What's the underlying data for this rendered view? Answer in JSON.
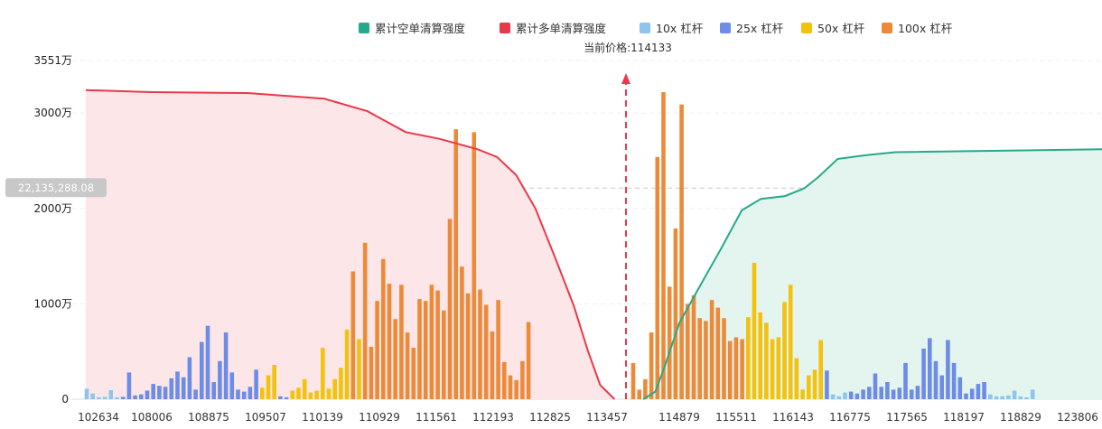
{
  "chart_data": {
    "type": "bar",
    "title": "",
    "price_label": "当前价格:114133",
    "current_price": 114133,
    "crosshair_label": "22,135,288.08",
    "crosshair_value": 22135288.08,
    "y_axis": {
      "unit": "万",
      "max": 35510000,
      "ticks": [
        {
          "value": 0,
          "label": "0"
        },
        {
          "value": 10000000,
          "label": "1000万"
        },
        {
          "value": 20000000,
          "label": "2000万"
        },
        {
          "value": 30000000,
          "label": "3000万"
        },
        {
          "value": 35510000,
          "label": "3551万"
        }
      ]
    },
    "x_axis": {
      "min": 102634,
      "max": 123806,
      "tick_labels": [
        "102634",
        "108006",
        "108875",
        "109507",
        "110139",
        "110929",
        "111561",
        "112193",
        "112825",
        "113457",
        "114879",
        "115511",
        "116143",
        "116775",
        "117565",
        "118197",
        "118829",
        "123806"
      ]
    },
    "legend": [
      {
        "key": "cum_short",
        "label": "累计空单清算强度",
        "color": "#26a98b"
      },
      {
        "key": "cum_long",
        "label": "累计多单清算强度",
        "color": "#e8394a"
      },
      {
        "key": "lev10",
        "label": "10x 杠杆",
        "color": "#8ec5ec"
      },
      {
        "key": "lev25",
        "label": "25x 杠杆",
        "color": "#6c8ce8"
      },
      {
        "key": "lev50",
        "label": "50x 杠杆",
        "color": "#f2c20c"
      },
      {
        "key": "lev100",
        "label": "100x 杠杆",
        "color": "#ec8a3a"
      }
    ],
    "colors": {
      "long_fill": "#fde6e8",
      "short_fill": "#e4f5ef",
      "price_line": "#e8394a",
      "grid": "#eeeeee",
      "crosshair_badge": "#c8c8c8"
    },
    "bars": [
      {
        "l": "10x",
        "v": 1100000
      },
      {
        "l": "10x",
        "v": 600000
      },
      {
        "l": "10x",
        "v": 200000
      },
      {
        "l": "10x",
        "v": 250000
      },
      {
        "l": "10x",
        "v": 950000
      },
      {
        "l": "10x",
        "v": 200000
      },
      {
        "l": "25x",
        "v": 250000
      },
      {
        "l": "25x",
        "v": 2800000
      },
      {
        "l": "25x",
        "v": 400000
      },
      {
        "l": "25x",
        "v": 500000
      },
      {
        "l": "25x",
        "v": 900000
      },
      {
        "l": "25x",
        "v": 1600000
      },
      {
        "l": "25x",
        "v": 1400000
      },
      {
        "l": "25x",
        "v": 1300000
      },
      {
        "l": "25x",
        "v": 2200000
      },
      {
        "l": "25x",
        "v": 2900000
      },
      {
        "l": "25x",
        "v": 2300000
      },
      {
        "l": "25x",
        "v": 4400000
      },
      {
        "l": "25x",
        "v": 1000000
      },
      {
        "l": "25x",
        "v": 6000000
      },
      {
        "l": "25x",
        "v": 7700000
      },
      {
        "l": "25x",
        "v": 1800000
      },
      {
        "l": "25x",
        "v": 4000000
      },
      {
        "l": "25x",
        "v": 7000000
      },
      {
        "l": "25x",
        "v": 2800000
      },
      {
        "l": "25x",
        "v": 1000000
      },
      {
        "l": "25x",
        "v": 800000
      },
      {
        "l": "25x",
        "v": 1300000
      },
      {
        "l": "25x",
        "v": 3100000
      },
      {
        "l": "50x",
        "v": 1200000
      },
      {
        "l": "50x",
        "v": 2500000
      },
      {
        "l": "50x",
        "v": 3600000
      },
      {
        "l": "25x",
        "v": 300000
      },
      {
        "l": "25x",
        "v": 200000
      },
      {
        "l": "50x",
        "v": 900000
      },
      {
        "l": "50x",
        "v": 1200000
      },
      {
        "l": "50x",
        "v": 2100000
      },
      {
        "l": "50x",
        "v": 700000
      },
      {
        "l": "50x",
        "v": 900000
      },
      {
        "l": "50x",
        "v": 5400000
      },
      {
        "l": "50x",
        "v": 1100000
      },
      {
        "l": "50x",
        "v": 2100000
      },
      {
        "l": "50x",
        "v": 3300000
      },
      {
        "l": "50x",
        "v": 7300000
      },
      {
        "l": "100x",
        "v": 13400000
      },
      {
        "l": "50x",
        "v": 6300000
      },
      {
        "l": "100x",
        "v": 16400000
      },
      {
        "l": "100x",
        "v": 5500000
      },
      {
        "l": "100x",
        "v": 10300000
      },
      {
        "l": "100x",
        "v": 14700000
      },
      {
        "l": "100x",
        "v": 12100000
      },
      {
        "l": "100x",
        "v": 8400000
      },
      {
        "l": "100x",
        "v": 12000000
      },
      {
        "l": "100x",
        "v": 7000000
      },
      {
        "l": "100x",
        "v": 5400000
      },
      {
        "l": "100x",
        "v": 10500000
      },
      {
        "l": "100x",
        "v": 10300000
      },
      {
        "l": "100x",
        "v": 12000000
      },
      {
        "l": "100x",
        "v": 11400000
      },
      {
        "l": "100x",
        "v": 9300000
      },
      {
        "l": "100x",
        "v": 18900000
      },
      {
        "l": "100x",
        "v": 28300000
      },
      {
        "l": "100x",
        "v": 13900000
      },
      {
        "l": "100x",
        "v": 11100000
      },
      {
        "l": "100x",
        "v": 28000000
      },
      {
        "l": "100x",
        "v": 11500000
      },
      {
        "l": "100x",
        "v": 9900000
      },
      {
        "l": "100x",
        "v": 7100000
      },
      {
        "l": "100x",
        "v": 10400000
      },
      {
        "l": "100x",
        "v": 3900000
      },
      {
        "l": "100x",
        "v": 2500000
      },
      {
        "l": "100x",
        "v": 2000000
      },
      {
        "l": "100x",
        "v": 4000000
      },
      {
        "l": "100x",
        "v": 8100000
      },
      {
        "l": "100x",
        "v": 3800000
      },
      {
        "l": "100x",
        "v": 1000000
      },
      {
        "l": "100x",
        "v": 2100000
      },
      {
        "l": "100x",
        "v": 7000000
      },
      {
        "l": "100x",
        "v": 25400000
      },
      {
        "l": "100x",
        "v": 32200000
      },
      {
        "l": "100x",
        "v": 11800000
      },
      {
        "l": "100x",
        "v": 17900000
      },
      {
        "l": "100x",
        "v": 30900000
      },
      {
        "l": "100x",
        "v": 10000000
      },
      {
        "l": "100x",
        "v": 10900000
      },
      {
        "l": "100x",
        "v": 8500000
      },
      {
        "l": "100x",
        "v": 8200000
      },
      {
        "l": "100x",
        "v": 10400000
      },
      {
        "l": "100x",
        "v": 9600000
      },
      {
        "l": "100x",
        "v": 8500000
      },
      {
        "l": "100x",
        "v": 6100000
      },
      {
        "l": "100x",
        "v": 6500000
      },
      {
        "l": "100x",
        "v": 6300000
      },
      {
        "l": "50x",
        "v": 8600000
      },
      {
        "l": "50x",
        "v": 14300000
      },
      {
        "l": "50x",
        "v": 9100000
      },
      {
        "l": "50x",
        "v": 8000000
      },
      {
        "l": "50x",
        "v": 6300000
      },
      {
        "l": "50x",
        "v": 6500000
      },
      {
        "l": "50x",
        "v": 10200000
      },
      {
        "l": "50x",
        "v": 12000000
      },
      {
        "l": "50x",
        "v": 4300000
      },
      {
        "l": "50x",
        "v": 1000000
      },
      {
        "l": "50x",
        "v": 2500000
      },
      {
        "l": "50x",
        "v": 3100000
      },
      {
        "l": "50x",
        "v": 6200000
      },
      {
        "l": "25x",
        "v": 3000000
      },
      {
        "l": "10x",
        "v": 500000
      },
      {
        "l": "10x",
        "v": 300000
      },
      {
        "l": "10x",
        "v": 700000
      },
      {
        "l": "25x",
        "v": 800000
      },
      {
        "l": "25x",
        "v": 600000
      },
      {
        "l": "25x",
        "v": 1000000
      },
      {
        "l": "25x",
        "v": 1300000
      },
      {
        "l": "25x",
        "v": 2700000
      },
      {
        "l": "25x",
        "v": 1300000
      },
      {
        "l": "25x",
        "v": 1800000
      },
      {
        "l": "25x",
        "v": 1000000
      },
      {
        "l": "25x",
        "v": 1200000
      },
      {
        "l": "25x",
        "v": 3800000
      },
      {
        "l": "25x",
        "v": 1000000
      },
      {
        "l": "25x",
        "v": 1400000
      },
      {
        "l": "25x",
        "v": 5300000
      },
      {
        "l": "25x",
        "v": 6400000
      },
      {
        "l": "25x",
        "v": 4000000
      },
      {
        "l": "25x",
        "v": 2500000
      },
      {
        "l": "25x",
        "v": 6200000
      },
      {
        "l": "25x",
        "v": 3800000
      },
      {
        "l": "25x",
        "v": 2300000
      },
      {
        "l": "25x",
        "v": 600000
      },
      {
        "l": "25x",
        "v": 1100000
      },
      {
        "l": "25x",
        "v": 1600000
      },
      {
        "l": "25x",
        "v": 1800000
      },
      {
        "l": "10x",
        "v": 500000
      },
      {
        "l": "10x",
        "v": 300000
      },
      {
        "l": "10x",
        "v": 300000
      },
      {
        "l": "10x",
        "v": 400000
      },
      {
        "l": "10x",
        "v": 900000
      },
      {
        "l": "10x",
        "v": 300000
      },
      {
        "l": "10x",
        "v": 200000
      },
      {
        "l": "10x",
        "v": 1000000
      }
    ],
    "cum_long_points": [
      [
        102634,
        32400000
      ],
      [
        104000,
        32200000
      ],
      [
        106000,
        32100000
      ],
      [
        107600,
        31500000
      ],
      [
        108500,
        30200000
      ],
      [
        109300,
        28000000
      ],
      [
        110000,
        27300000
      ],
      [
        110800,
        26200000
      ],
      [
        111200,
        25400000
      ],
      [
        111600,
        23500000
      ],
      [
        112000,
        20000000
      ],
      [
        112400,
        15000000
      ],
      [
        112800,
        9800000
      ],
      [
        113100,
        5000000
      ],
      [
        113350,
        1500000
      ],
      [
        113650,
        0
      ]
    ],
    "cum_short_points": [
      [
        114250,
        0
      ],
      [
        114500,
        800000
      ],
      [
        114700,
        3500000
      ],
      [
        115000,
        8000000
      ],
      [
        115300,
        10700000
      ],
      [
        115600,
        13400000
      ],
      [
        115850,
        15600000
      ],
      [
        116000,
        17000000
      ],
      [
        116300,
        19800000
      ],
      [
        116700,
        21000000
      ],
      [
        117200,
        21300000
      ],
      [
        117600,
        22100000
      ],
      [
        117900,
        23300000
      ],
      [
        118300,
        25200000
      ],
      [
        118900,
        25600000
      ],
      [
        119500,
        25900000
      ],
      [
        123806,
        26200000
      ]
    ]
  }
}
